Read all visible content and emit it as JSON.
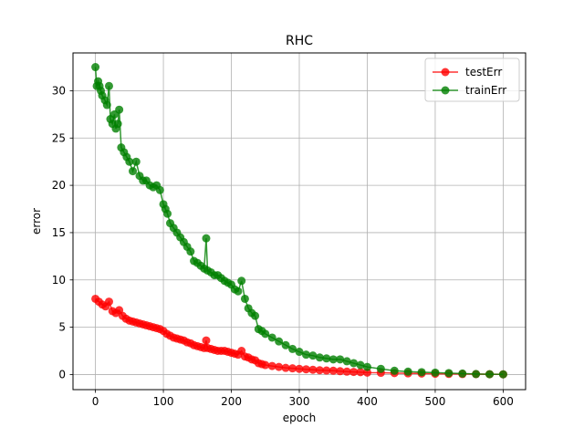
{
  "chart_data": {
    "type": "line",
    "title": "RHC",
    "xlabel": "epoch",
    "ylabel": "error",
    "xlim": [
      -33,
      633
    ],
    "ylim": [
      -1.6,
      34.0
    ],
    "xticks": [
      0,
      100,
      200,
      300,
      400,
      500,
      600
    ],
    "yticks": [
      0,
      5,
      10,
      15,
      20,
      25,
      30
    ],
    "grid": true,
    "legend_position": "top-right",
    "series": [
      {
        "name": "testErr",
        "color": "#ff0000",
        "marker": "circle",
        "x": [
          0,
          5,
          10,
          15,
          20,
          25,
          30,
          35,
          40,
          45,
          50,
          55,
          60,
          65,
          70,
          75,
          80,
          85,
          90,
          95,
          100,
          105,
          110,
          115,
          120,
          125,
          130,
          135,
          140,
          145,
          150,
          155,
          160,
          163,
          165,
          170,
          175,
          180,
          185,
          190,
          195,
          200,
          205,
          210,
          215,
          220,
          225,
          230,
          235,
          240,
          245,
          250,
          260,
          270,
          280,
          290,
          300,
          310,
          320,
          330,
          340,
          350,
          360,
          370,
          380,
          390,
          400,
          420,
          440,
          460,
          480,
          500,
          520,
          540,
          560,
          580,
          600
        ],
        "y": [
          8.0,
          7.7,
          7.4,
          7.2,
          7.7,
          6.7,
          6.5,
          6.8,
          6.2,
          5.9,
          5.7,
          5.6,
          5.5,
          5.4,
          5.3,
          5.2,
          5.1,
          5.0,
          4.9,
          4.8,
          4.6,
          4.3,
          4.1,
          3.9,
          3.8,
          3.7,
          3.6,
          3.4,
          3.3,
          3.1,
          3.0,
          2.9,
          2.8,
          3.6,
          2.8,
          2.7,
          2.6,
          2.5,
          2.5,
          2.5,
          2.4,
          2.3,
          2.2,
          2.1,
          2.5,
          1.9,
          1.8,
          1.6,
          1.5,
          1.2,
          1.1,
          1.0,
          0.9,
          0.8,
          0.7,
          0.65,
          0.6,
          0.55,
          0.5,
          0.45,
          0.42,
          0.4,
          0.35,
          0.3,
          0.27,
          0.25,
          0.2,
          0.18,
          0.15,
          0.12,
          0.1,
          0.08,
          0.06,
          0.05,
          0.04,
          0.03,
          0.02
        ]
      },
      {
        "name": "trainErr",
        "color": "#008000",
        "marker": "circle",
        "x": [
          0,
          2,
          4,
          6,
          8,
          10,
          14,
          17,
          20,
          22,
          25,
          28,
          30,
          33,
          35,
          38,
          42,
          46,
          50,
          55,
          60,
          65,
          70,
          75,
          80,
          85,
          90,
          95,
          100,
          103,
          106,
          110,
          115,
          120,
          125,
          130,
          135,
          140,
          145,
          150,
          155,
          160,
          163,
          165,
          170,
          175,
          180,
          185,
          190,
          195,
          200,
          205,
          210,
          215,
          220,
          225,
          230,
          235,
          240,
          245,
          250,
          260,
          270,
          280,
          290,
          300,
          310,
          320,
          330,
          340,
          350,
          360,
          370,
          380,
          390,
          400,
          420,
          440,
          460,
          480,
          500,
          520,
          540,
          560,
          580,
          600
        ],
        "y": [
          32.5,
          30.5,
          31.0,
          30.5,
          30.0,
          29.5,
          29.0,
          28.5,
          30.5,
          27.0,
          26.5,
          27.5,
          26.0,
          26.5,
          28.0,
          24.0,
          23.5,
          23.0,
          22.5,
          21.5,
          22.5,
          21.0,
          20.5,
          20.5,
          20.0,
          19.8,
          20.0,
          19.5,
          18.0,
          17.5,
          17.0,
          16.0,
          15.5,
          15.0,
          14.5,
          14.0,
          13.5,
          13.0,
          12.0,
          11.8,
          11.5,
          11.2,
          14.4,
          11.0,
          10.8,
          10.5,
          10.5,
          10.2,
          9.9,
          9.7,
          9.5,
          9.0,
          8.8,
          9.9,
          8.0,
          7.0,
          6.5,
          6.2,
          4.8,
          4.6,
          4.3,
          3.9,
          3.5,
          3.1,
          2.7,
          2.4,
          2.1,
          2.0,
          1.8,
          1.7,
          1.6,
          1.6,
          1.4,
          1.2,
          1.0,
          0.8,
          0.6,
          0.4,
          0.3,
          0.25,
          0.2,
          0.15,
          0.1,
          0.05,
          0.03,
          0.02
        ]
      }
    ]
  }
}
